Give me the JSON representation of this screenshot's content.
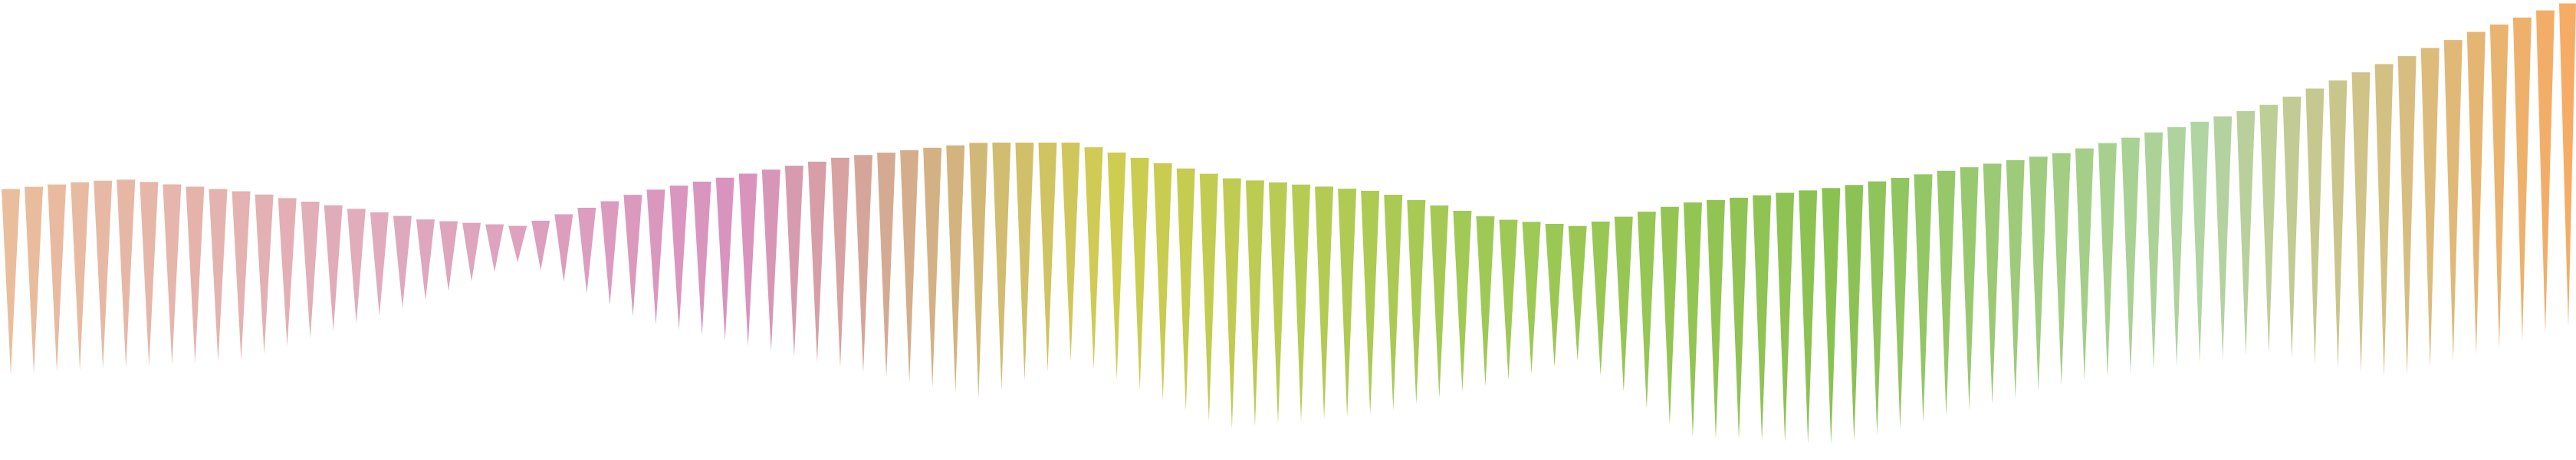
{
  "decoration": {
    "type": "spike-wave",
    "count": 112,
    "palette": [
      "#e7b48e",
      "#dc9fb4",
      "#d483b6",
      "#c8c637",
      "#93c23d",
      "#7ab93a",
      "#a6cf96",
      "#f5a04e"
    ]
  }
}
